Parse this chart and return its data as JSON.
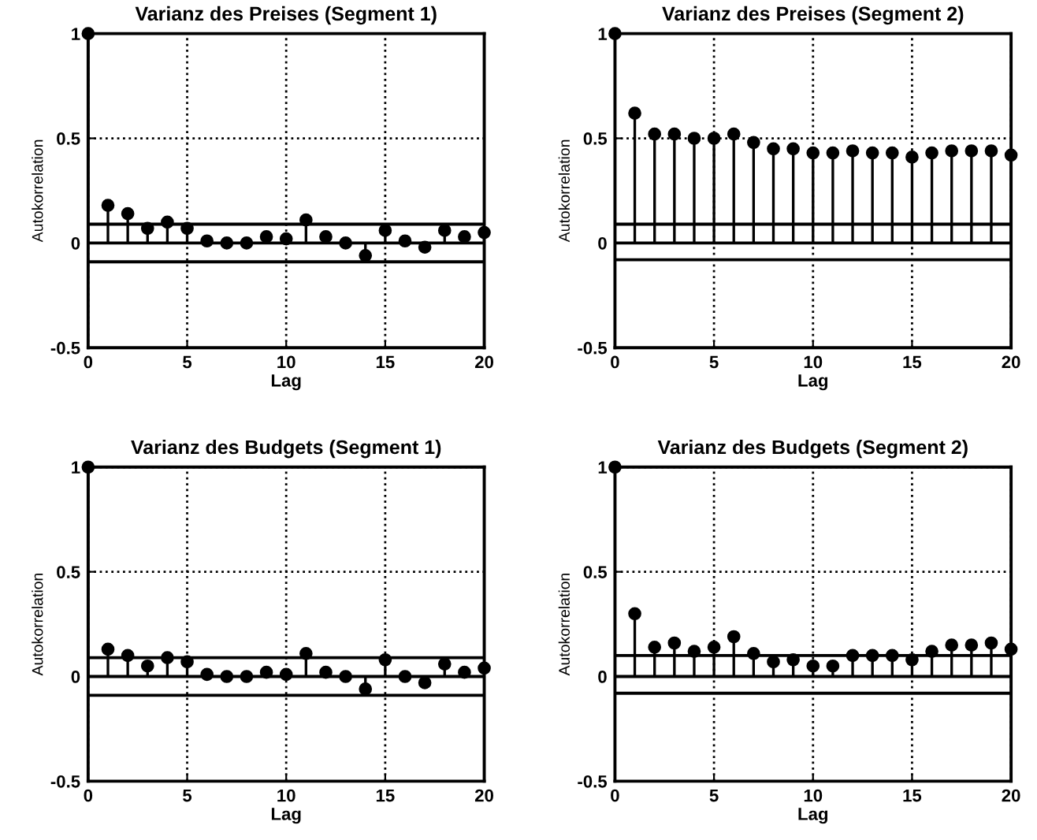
{
  "chart_data": [
    {
      "type": "lollipop",
      "title": "Varianz des Preises (Segment 1)",
      "xlabel": "Lag",
      "ylabel": "Autokorrelation",
      "x": [
        0,
        1,
        2,
        3,
        4,
        5,
        6,
        7,
        8,
        9,
        10,
        11,
        12,
        13,
        14,
        15,
        16,
        17,
        18,
        19,
        20
      ],
      "values": [
        1,
        0.18,
        0.14,
        0.07,
        0.1,
        0.07,
        0.01,
        0.0,
        0.0,
        0.03,
        0.02,
        0.11,
        0.03,
        0.0,
        -0.06,
        0.06,
        0.01,
        -0.02,
        0.06,
        0.03,
        0.05
      ],
      "color": "#000000",
      "marker": "circle",
      "xlim": [
        0,
        20
      ],
      "ylim": [
        -0.5,
        1
      ],
      "xticks": [
        0,
        5,
        10,
        15,
        20
      ],
      "yticks": [
        -0.5,
        0,
        0.5,
        1
      ],
      "grid": true,
      "ref_lines": [
        {
          "axis": "y",
          "value": 0,
          "color": "#000000"
        },
        {
          "axis": "y",
          "value": 0.09,
          "color": "#000000"
        },
        {
          "axis": "y",
          "value": -0.09,
          "color": "#000000"
        }
      ]
    },
    {
      "type": "lollipop",
      "title": "Varianz des Preises (Segment 2)",
      "xlabel": "Lag",
      "ylabel": "Autokorrelation",
      "x": [
        0,
        1,
        2,
        3,
        4,
        5,
        6,
        7,
        8,
        9,
        10,
        11,
        12,
        13,
        14,
        15,
        16,
        17,
        18,
        19,
        20
      ],
      "values": [
        1,
        0.62,
        0.52,
        0.52,
        0.5,
        0.5,
        0.52,
        0.48,
        0.45,
        0.45,
        0.43,
        0.43,
        0.44,
        0.43,
        0.43,
        0.41,
        0.43,
        0.44,
        0.44,
        0.44,
        0.42
      ],
      "color": "#000000",
      "marker": "circle",
      "xlim": [
        0,
        20
      ],
      "ylim": [
        -0.5,
        1
      ],
      "xticks": [
        0,
        5,
        10,
        15,
        20
      ],
      "yticks": [
        -0.5,
        0,
        0.5,
        1
      ],
      "grid": true,
      "ref_lines": [
        {
          "axis": "y",
          "value": 0,
          "color": "#000000"
        },
        {
          "axis": "y",
          "value": 0.09,
          "color": "#000000"
        },
        {
          "axis": "y",
          "value": -0.08,
          "color": "#000000"
        }
      ]
    },
    {
      "type": "lollipop",
      "title": "Varianz des Budgets (Segment 1)",
      "xlabel": "Lag",
      "ylabel": "Autokorrelation",
      "x": [
        0,
        1,
        2,
        3,
        4,
        5,
        6,
        7,
        8,
        9,
        10,
        11,
        12,
        13,
        14,
        15,
        16,
        17,
        18,
        19,
        20
      ],
      "values": [
        1,
        0.13,
        0.1,
        0.05,
        0.09,
        0.07,
        0.01,
        0.0,
        0.0,
        0.02,
        0.01,
        0.11,
        0.02,
        0.0,
        -0.06,
        0.08,
        0.0,
        -0.03,
        0.06,
        0.02,
        0.04
      ],
      "color": "#000000",
      "marker": "circle",
      "xlim": [
        0,
        20
      ],
      "ylim": [
        -0.5,
        1
      ],
      "xticks": [
        0,
        5,
        10,
        15,
        20
      ],
      "yticks": [
        -0.5,
        0,
        0.5,
        1
      ],
      "grid": true,
      "ref_lines": [
        {
          "axis": "y",
          "value": 0,
          "color": "#000000"
        },
        {
          "axis": "y",
          "value": 0.09,
          "color": "#000000"
        },
        {
          "axis": "y",
          "value": -0.09,
          "color": "#000000"
        }
      ]
    },
    {
      "type": "lollipop",
      "title": "Varianz des Budgets (Segment 2)",
      "xlabel": "Lag",
      "ylabel": "Autokorrelation",
      "x": [
        0,
        1,
        2,
        3,
        4,
        5,
        6,
        7,
        8,
        9,
        10,
        11,
        12,
        13,
        14,
        15,
        16,
        17,
        18,
        19,
        20
      ],
      "values": [
        1,
        0.3,
        0.14,
        0.16,
        0.12,
        0.14,
        0.19,
        0.11,
        0.07,
        0.08,
        0.05,
        0.05,
        0.1,
        0.1,
        0.1,
        0.08,
        0.12,
        0.15,
        0.15,
        0.16,
        0.13
      ],
      "color": "#000000",
      "marker": "circle",
      "xlim": [
        0,
        20
      ],
      "ylim": [
        -0.5,
        1
      ],
      "xticks": [
        0,
        5,
        10,
        15,
        20
      ],
      "yticks": [
        -0.5,
        0,
        0.5,
        1
      ],
      "grid": true,
      "ref_lines": [
        {
          "axis": "y",
          "value": 0,
          "color": "#000000"
        },
        {
          "axis": "y",
          "value": 0.1,
          "color": "#000000"
        },
        {
          "axis": "y",
          "value": -0.08,
          "color": "#000000"
        }
      ]
    }
  ]
}
